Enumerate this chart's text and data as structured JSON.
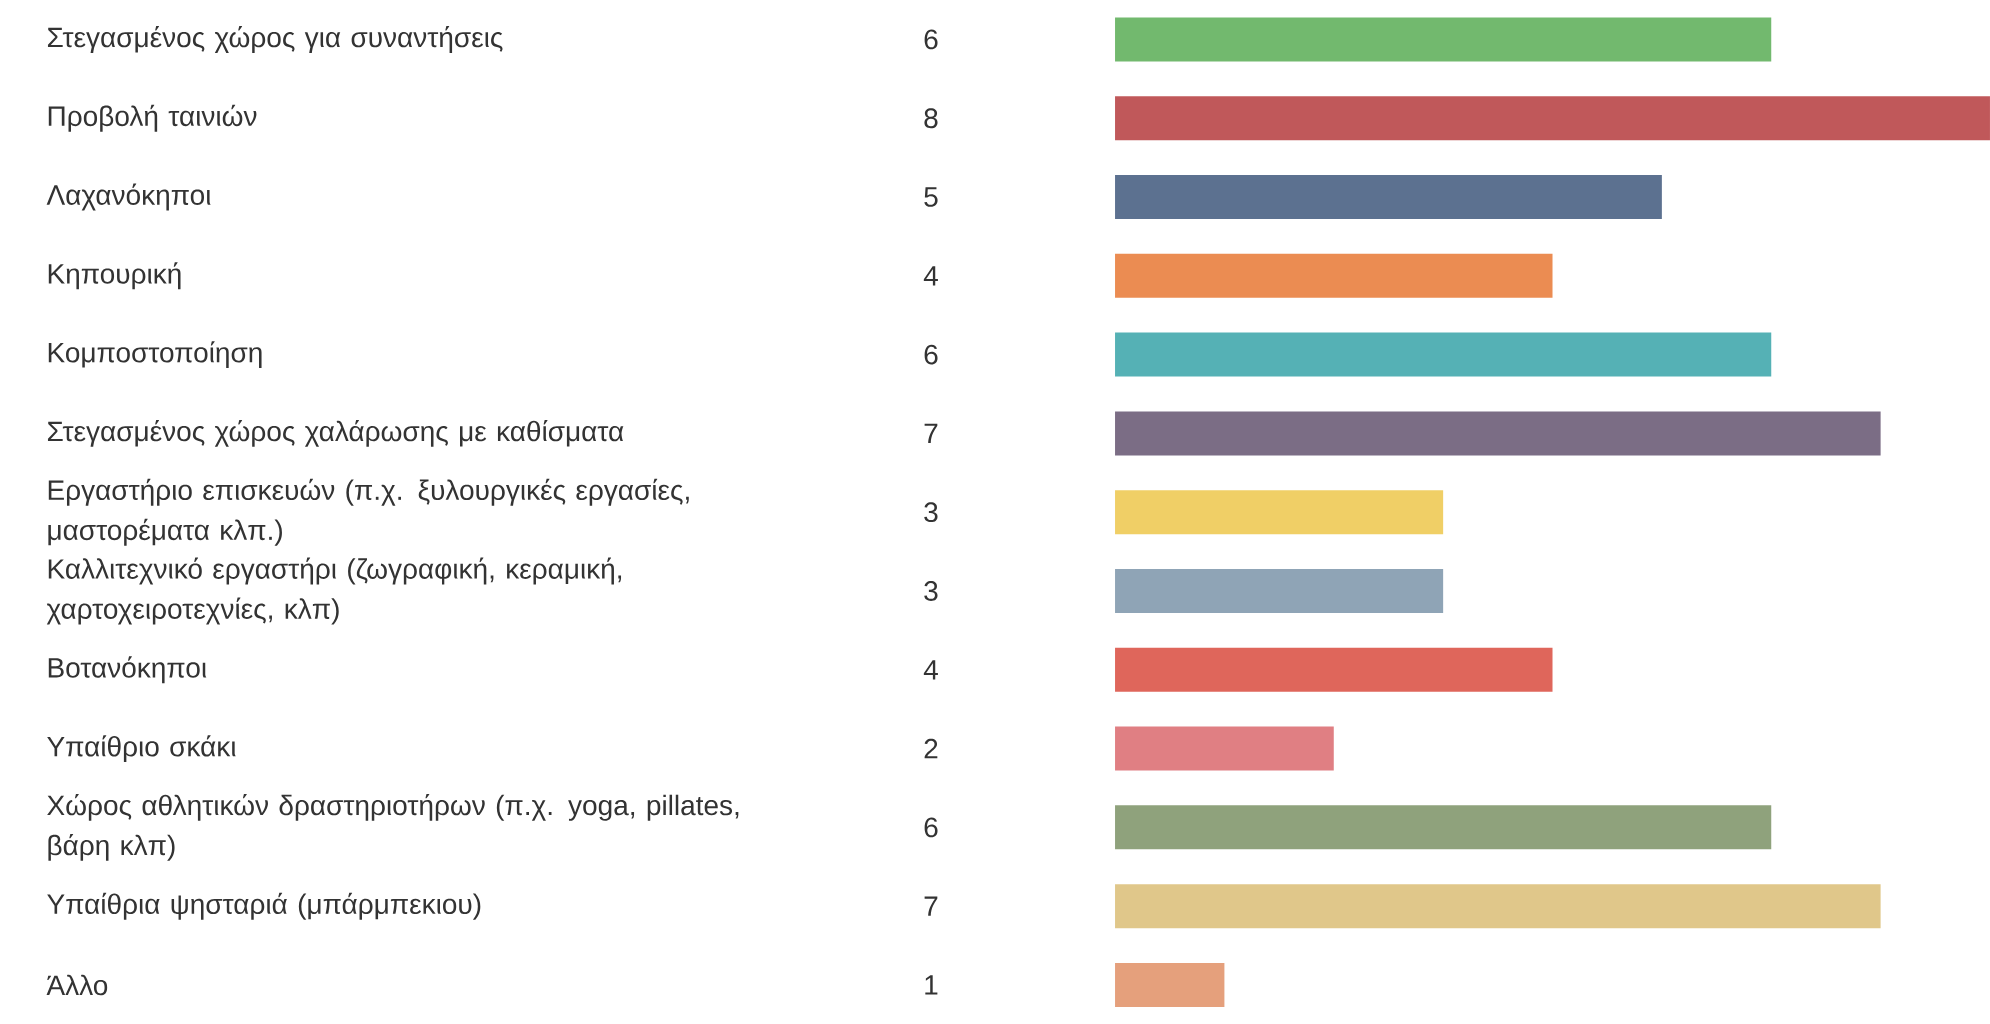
{
  "chart_data": {
    "type": "bar",
    "orientation": "horizontal",
    "data_labels": true,
    "categories": [
      "Στεγασμένος χώρος για συναντήσεις",
      "Προβολή ταινιών",
      "Λαχανόκηποι",
      "Κηπουρική",
      "Κομποστοποίηση",
      "Στεγασμένος χώρος χαλάρωσης με καθίσματα",
      "Εργαστήριο επισκευών (π.χ. ξυλουργικές εργασίες, μαστορέματα κλπ.)",
      "Καλλιτεχνικό εργαστήρι (ζωγραφική, κεραμική, χαρτοχειροτεχνίες, κλπ)",
      "Βοτανόκηποι",
      "Υπαίθριο σκάκι",
      "Χώρος αθλητικών δραστηριοτήρων (π.χ. yoga, pillates, βάρη κλπ)",
      "Υπαίθρια ψησταριά (μπάρμπεκιου)",
      "Άλλο"
    ],
    "values": [
      6,
      8,
      5,
      4,
      6,
      7,
      3,
      3,
      4,
      2,
      6,
      7,
      1
    ],
    "colors": [
      "#72b96e",
      "#c0585a",
      "#5c7190",
      "#eb8c52",
      "#55b1b5",
      "#7b6d85",
      "#f0cf66",
      "#8fa4b6",
      "#df665b",
      "#e07f83",
      "#8fa27c",
      "#e0c78a",
      "#e5a07c"
    ]
  }
}
